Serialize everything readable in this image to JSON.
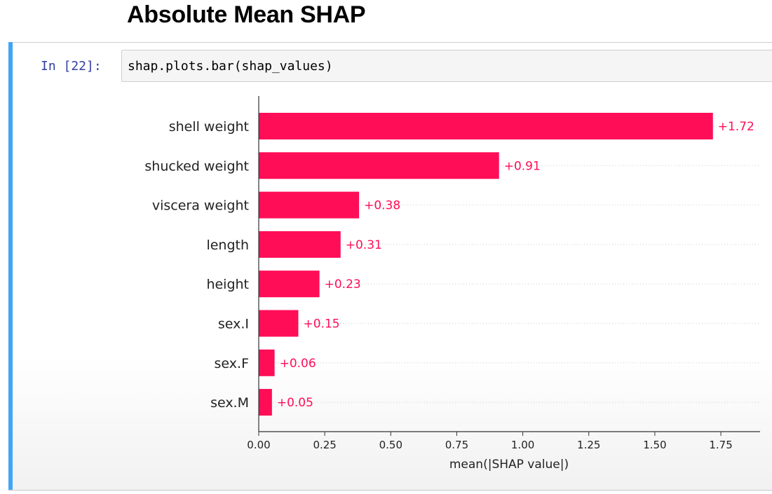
{
  "page": {
    "title": "Absolute Mean SHAP"
  },
  "cell": {
    "prompt": "In [22]:",
    "code": "shap.plots.bar(shap_values)"
  },
  "colors": {
    "bar": "#ff0d57",
    "cell_accent": "#42a5f5",
    "prompt": "#303f9f"
  },
  "chart_data": {
    "type": "bar",
    "orientation": "horizontal",
    "categories": [
      "shell weight",
      "shucked weight",
      "viscera weight",
      "length",
      "height",
      "sex.I",
      "sex.F",
      "sex.M"
    ],
    "values": [
      1.72,
      0.91,
      0.38,
      0.31,
      0.23,
      0.15,
      0.06,
      0.05
    ],
    "value_labels": [
      "+1.72",
      "+0.91",
      "+0.38",
      "+0.31",
      "+0.23",
      "+0.15",
      "+0.06",
      "+0.05"
    ],
    "xticks": [
      "0.00",
      "0.25",
      "0.50",
      "0.75",
      "1.00",
      "1.25",
      "1.50",
      "1.75"
    ],
    "xlabel": "mean(|SHAP value|)",
    "ylabel": "",
    "xlim": [
      0,
      1.9
    ],
    "grid": "dotted horizontal row guides"
  }
}
